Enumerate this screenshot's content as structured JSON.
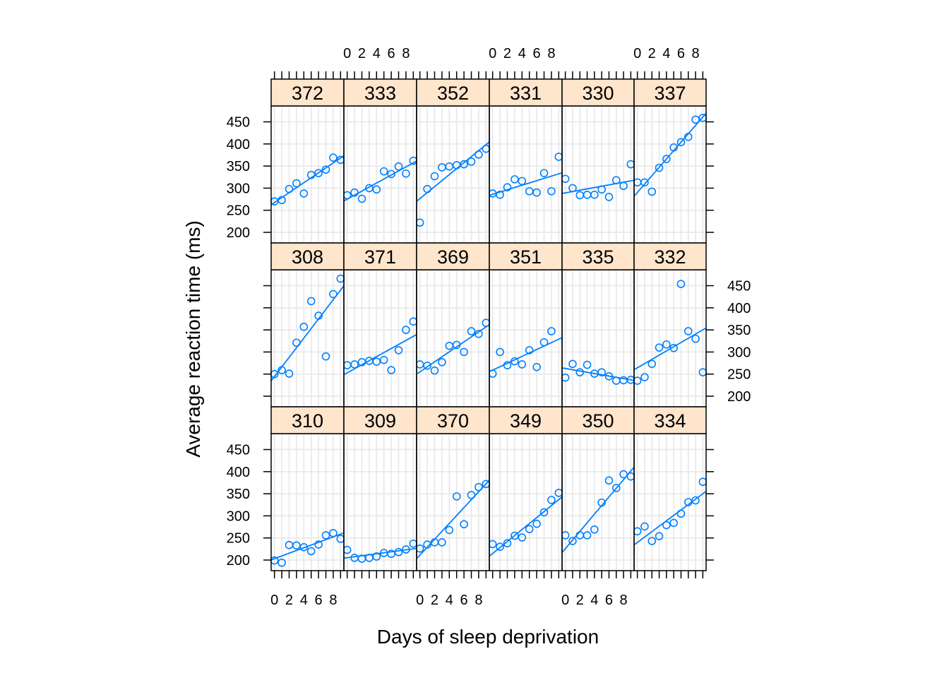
{
  "chart_data": {
    "type": "scatter",
    "xlabel": "Days of sleep deprivation",
    "ylabel": "Average reaction time (ms)",
    "xlim": [
      -0.45,
      9.45
    ],
    "ylim": [
      176,
      486
    ],
    "x_ticks": [
      0,
      1,
      2,
      3,
      4,
      5,
      6,
      7,
      8,
      9
    ],
    "x_tick_labels": [
      "0",
      "2",
      "4",
      "6",
      "8"
    ],
    "x_tick_label_values": [
      0,
      2,
      4,
      6,
      8
    ],
    "y_ticks": [
      200,
      250,
      300,
      350,
      400,
      450
    ],
    "y_tick_labels": [
      "200",
      "250",
      "300",
      "350",
      "400",
      "450"
    ],
    "grid": true,
    "layout": {
      "columns": 6,
      "rows": 3
    },
    "colors": {
      "points": "#0080ff",
      "strip": "#ffe5cc",
      "grid": "#e6e6e6",
      "border": "#000000"
    },
    "panels": [
      {
        "subject": "372",
        "row": "top",
        "col": 1,
        "y": [
          270,
          273,
          298,
          311,
          288,
          330,
          334,
          342,
          369,
          364
        ]
      },
      {
        "subject": "333",
        "row": "top",
        "col": 2,
        "y": [
          284,
          290,
          276,
          300,
          297,
          338,
          332,
          349,
          333,
          362
        ]
      },
      {
        "subject": "352",
        "row": "top",
        "col": 3,
        "y": [
          222,
          298,
          327,
          347,
          349,
          352,
          354,
          360,
          376,
          389
        ]
      },
      {
        "subject": "331",
        "row": "top",
        "col": 4,
        "y": [
          288,
          285,
          302,
          320,
          316,
          293,
          290,
          334,
          293,
          371
        ]
      },
      {
        "subject": "330",
        "row": "top",
        "col": 5,
        "y": [
          321,
          300,
          284,
          285,
          285,
          297,
          280,
          318,
          305,
          354
        ]
      },
      {
        "subject": "337",
        "row": "top",
        "col": 6,
        "y": [
          313,
          313,
          292,
          346,
          366,
          392,
          404,
          416,
          455,
          459
        ]
      },
      {
        "subject": "308",
        "row": "middle",
        "col": 1,
        "y": [
          250,
          259,
          251,
          321,
          357,
          415,
          382,
          290,
          431,
          466
        ]
      },
      {
        "subject": "371",
        "row": "middle",
        "col": 2,
        "y": [
          270,
          272,
          277,
          280,
          278,
          282,
          259,
          304,
          350,
          369
        ]
      },
      {
        "subject": "369",
        "row": "middle",
        "col": 3,
        "y": [
          272,
          269,
          258,
          277,
          314,
          316,
          300,
          347,
          341,
          366
        ]
      },
      {
        "subject": "351",
        "row": "middle",
        "col": 4,
        "y": [
          251,
          300,
          270,
          279,
          272,
          304,
          266,
          322,
          347,
          null
        ]
      },
      {
        "subject": "335",
        "row": "middle",
        "col": 5,
        "y": [
          242,
          273,
          254,
          271,
          251,
          254,
          245,
          235,
          236,
          237
        ]
      },
      {
        "subject": "332",
        "row": "middle",
        "col": 6,
        "y": [
          235,
          243,
          273,
          310,
          317,
          309,
          454,
          347,
          330,
          254
        ]
      },
      {
        "subject": "310",
        "row": "bottom",
        "col": 1,
        "y": [
          199,
          194,
          234,
          233,
          229,
          220,
          235,
          256,
          261,
          248
        ]
      },
      {
        "subject": "309",
        "row": "bottom",
        "col": 2,
        "y": [
          223,
          205,
          203,
          205,
          208,
          216,
          214,
          218,
          224,
          237
        ]
      },
      {
        "subject": "370",
        "row": "bottom",
        "col": 3,
        "y": [
          226,
          235,
          240,
          240,
          268,
          344,
          281,
          347,
          365,
          372
        ]
      },
      {
        "subject": "349",
        "row": "bottom",
        "col": 4,
        "y": [
          236,
          230,
          238,
          255,
          251,
          270,
          282,
          308,
          336,
          352
        ]
      },
      {
        "subject": "350",
        "row": "bottom",
        "col": 5,
        "y": [
          256,
          243,
          256,
          256,
          269,
          330,
          380,
          363,
          394,
          389
        ]
      },
      {
        "subject": "334",
        "row": "bottom",
        "col": 6,
        "y": [
          265,
          276,
          243,
          254,
          279,
          284,
          305,
          331,
          335,
          377
        ]
      }
    ]
  }
}
